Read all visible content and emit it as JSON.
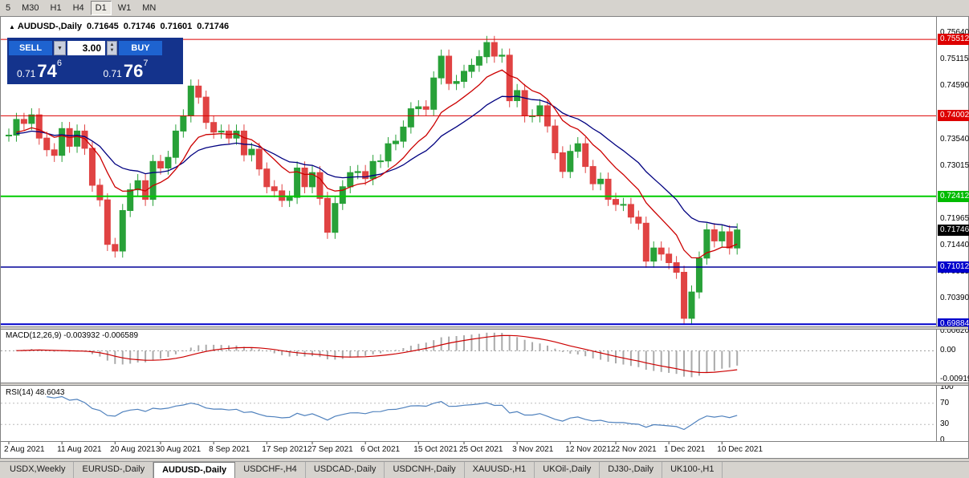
{
  "colors": {
    "window_bg": "#d6d3ce",
    "chart_bg": "#ffffff",
    "panel_bg": "#14338c",
    "panel_button": "#1e63d0",
    "tab_bar_bg": "#d6d3ce",
    "tab_active_bg": "#ffffff"
  },
  "icons": {
    "chart_arrow": "▲",
    "spinner_up": "▲",
    "spinner_down": "▼"
  },
  "toolbar": {
    "timeframes": [
      "5",
      "M30",
      "H1",
      "H4",
      "D1",
      "W1",
      "MN"
    ],
    "active": "D1"
  },
  "chart_header": {
    "symbol": "AUDUSD-,Daily",
    "open": "0.71645",
    "high": "0.71746",
    "low": "0.71601",
    "close": "0.71746"
  },
  "trade_panel": {
    "sell_label": "SELL",
    "buy_label": "BUY",
    "volume": "3.00",
    "sell_price": {
      "prefix": "0.71",
      "big": "74",
      "sup": "6"
    },
    "buy_price": {
      "prefix": "0.71",
      "big": "76",
      "sup": "7"
    }
  },
  "price_axis": {
    "labels": [
      "0.75640",
      "0.75115",
      "0.74590",
      "0.73540",
      "0.73015",
      "0.71965",
      "0.71440",
      "0.70915",
      "0.70390"
    ],
    "badges": [
      {
        "value": "0.75512",
        "color": "#dd0000"
      },
      {
        "value": "0.74002",
        "color": "#dd0000"
      },
      {
        "value": "0.72412",
        "color": "#00bb00"
      },
      {
        "value": "0.71746",
        "color": "#000000"
      },
      {
        "value": "0.71012",
        "color": "#0000cc"
      },
      {
        "value": "0.69884",
        "color": "#0000cc"
      }
    ]
  },
  "macd_panel": {
    "label": "MACD(12,26,9) -0.003932 -0.006589",
    "axis_labels": [
      "0.00620",
      "0.00",
      "-0.00919"
    ]
  },
  "rsi_panel": {
    "label": "RSI(14) 48.6043",
    "axis_labels": [
      "100",
      "70",
      "30",
      "0"
    ]
  },
  "tabs": {
    "active_index": 2,
    "items": [
      "USDX,Weekly",
      "EURUSD-,Daily",
      "AUDUSD-,Daily",
      "USDCHF-,H4",
      "USDCAD-,Daily",
      "USDCNH-,Daily",
      "XAUUSD-,H1",
      "UKOil-,Daily",
      "DJ30-,Daily",
      "UK100-,H1"
    ]
  },
  "chart_data": {
    "type": "candlestick",
    "symbol": "AUDUSD",
    "timeframe": "Daily",
    "price_range": [
      0.6984,
      0.7583
    ],
    "wick": 0.0013,
    "closes": [
      0.7362,
      0.7393,
      0.7385,
      0.7402,
      0.7356,
      0.7333,
      0.7322,
      0.7375,
      0.734,
      0.737,
      0.7336,
      0.7263,
      0.7234,
      0.7146,
      0.7133,
      0.7213,
      0.7254,
      0.7272,
      0.7235,
      0.731,
      0.7297,
      0.7318,
      0.737,
      0.74,
      0.7459,
      0.7437,
      0.7387,
      0.7368,
      0.737,
      0.7356,
      0.737,
      0.7323,
      0.7334,
      0.7295,
      0.726,
      0.7252,
      0.7233,
      0.7239,
      0.7297,
      0.726,
      0.7288,
      0.7237,
      0.717,
      0.7227,
      0.726,
      0.7288,
      0.729,
      0.7276,
      0.731,
      0.7311,
      0.7345,
      0.735,
      0.7378,
      0.7414,
      0.7418,
      0.7413,
      0.7475,
      0.7518,
      0.7464,
      0.7468,
      0.7488,
      0.75,
      0.7517,
      0.7545,
      0.7518,
      0.752,
      0.743,
      0.745,
      0.74,
      0.74,
      0.742,
      0.738,
      0.7327,
      0.729,
      0.733,
      0.7345,
      0.73,
      0.7266,
      0.7275,
      0.7235,
      0.7225,
      0.7225,
      0.72,
      0.7188,
      0.7113,
      0.7139,
      0.7127,
      0.711,
      0.7091,
      0.7,
      0.7052,
      0.7119,
      0.7175,
      0.7153,
      0.7171,
      0.7139,
      0.71746
    ],
    "x_ticks": [
      {
        "i": 0,
        "label": "2 Aug 2021"
      },
      {
        "i": 7,
        "label": "11 Aug 2021"
      },
      {
        "i": 14,
        "label": "20 Aug 2021"
      },
      {
        "i": 20,
        "label": "30 Aug 2021"
      },
      {
        "i": 27,
        "label": "8 Sep 2021"
      },
      {
        "i": 34,
        "label": "17 Sep 2021"
      },
      {
        "i": 40,
        "label": "27 Sep 2021"
      },
      {
        "i": 47,
        "label": "6 Oct 2021"
      },
      {
        "i": 54,
        "label": "15 Oct 2021"
      },
      {
        "i": 60,
        "label": "25 Oct 2021"
      },
      {
        "i": 67,
        "label": "3 Nov 2021"
      },
      {
        "i": 74,
        "label": "12 Nov 2021"
      },
      {
        "i": 80,
        "label": "22 Nov 2021"
      },
      {
        "i": 87,
        "label": "1 Dec 2021"
      },
      {
        "i": 94,
        "label": "10 Dec 2021"
      }
    ],
    "hlines": [
      {
        "value": 0.75512,
        "color": "#dd0000",
        "width": 1
      },
      {
        "value": 0.74002,
        "color": "#dd0000",
        "width": 1
      },
      {
        "value": 0.72412,
        "color": "#00cc00",
        "width": 2
      },
      {
        "value": 0.71012,
        "color": "#000099",
        "width": 1.5
      },
      {
        "value": 0.69884,
        "color": "#0000cc",
        "width": 2
      }
    ],
    "current_price": 0.71746,
    "ma_fast_period": 10,
    "ma_slow_period": 21,
    "macd": {
      "fast": 12,
      "slow": 26,
      "signal": 9,
      "range": [
        -0.0102,
        0.0068
      ],
      "current": -0.003932,
      "current_signal": -0.006589
    },
    "rsi": {
      "period": 14,
      "levels": [
        70,
        30
      ],
      "current": 48.6043
    },
    "colors": {
      "up": "#28a138",
      "down": "#e04343",
      "ma_fast": "#cc0000",
      "ma_slow": "#000080",
      "macd_hist": "#aaaaaa",
      "macd_signal": "#cc0000",
      "rsi_line": "#4f81bd"
    }
  }
}
